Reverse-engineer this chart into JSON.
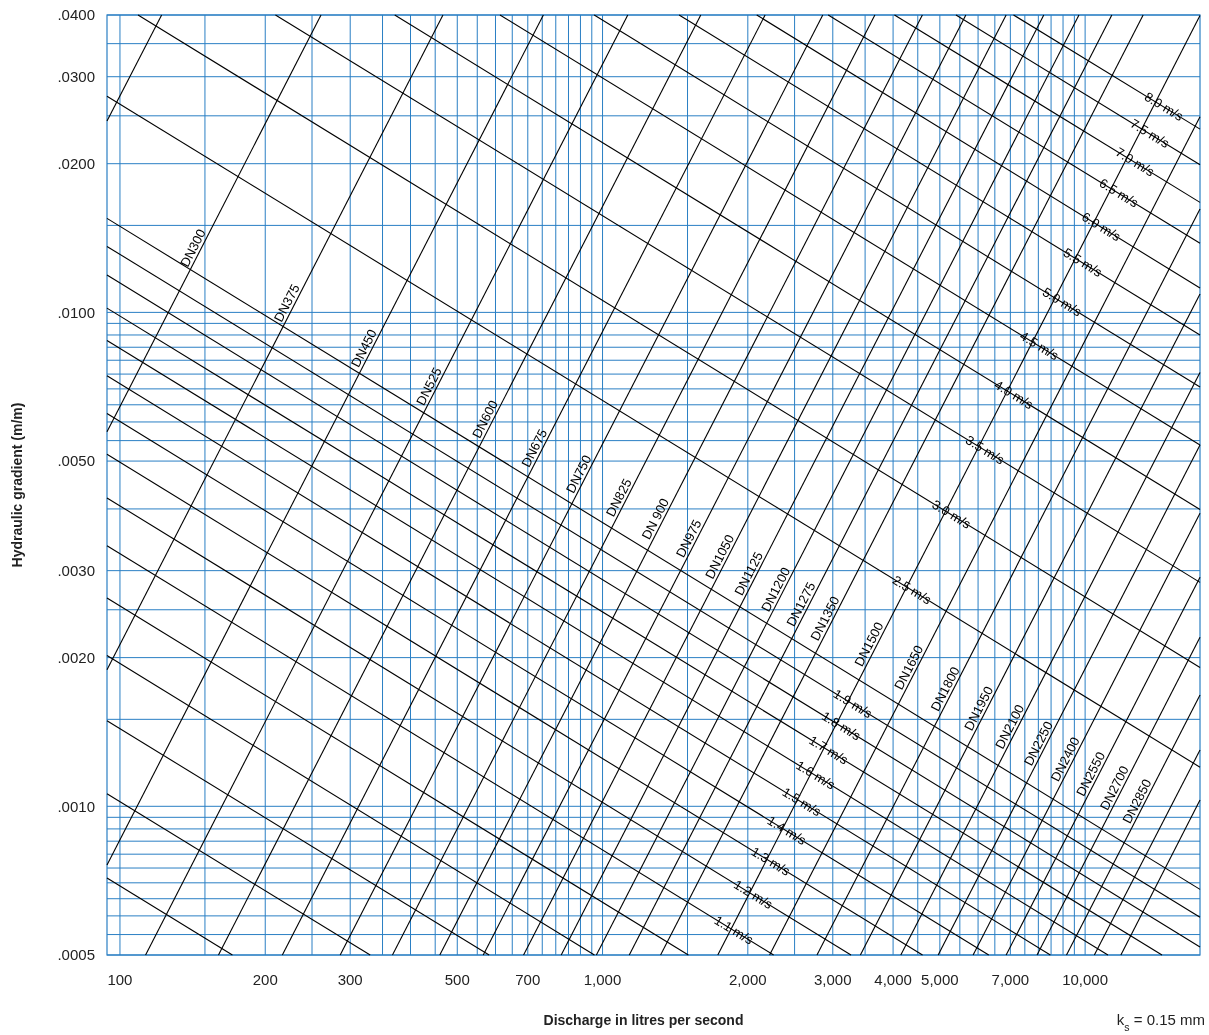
{
  "chart_data": {
    "type": "line",
    "log": "xy",
    "grid": true,
    "xlabel": "Discharge in litres per second",
    "ylabel": "Hydraulic gradient (m/m)",
    "annotations": [
      "k$_{s}$ = 0.15 mm"
    ],
    "xlim": [
      94,
      17300
    ],
    "ylim": [
      0.0005,
      0.04
    ],
    "xticks": [
      100,
      {
        "value": 150,
        "label": null
      },
      200,
      {
        "value": 250,
        "label": null
      },
      300,
      {
        "value": 350,
        "label": null
      },
      {
        "value": 400,
        "label": null
      },
      {
        "value": 450,
        "label": null
      },
      500,
      {
        "value": 550,
        "label": null
      },
      {
        "value": 600,
        "label": null
      },
      {
        "value": 650,
        "label": null
      },
      700,
      {
        "value": 750,
        "label": null
      },
      {
        "value": 800,
        "label": null
      },
      {
        "value": 850,
        "label": null
      },
      {
        "value": 900,
        "label": null
      },
      {
        "value": 950,
        "label": null
      },
      {
        "value": 1000,
        "label": "1,000"
      },
      {
        "value": 1500,
        "label": null
      },
      {
        "value": 2000,
        "label": "2,000"
      },
      {
        "value": 2500,
        "label": null
      },
      {
        "value": 3000,
        "label": "3,000"
      },
      {
        "value": 3500,
        "label": null
      },
      {
        "value": 4000,
        "label": "4,000"
      },
      {
        "value": 4500,
        "label": null
      },
      {
        "value": 5000,
        "label": "5,000"
      },
      {
        "value": 5500,
        "label": null
      },
      {
        "value": 6000,
        "label": null
      },
      {
        "value": 6500,
        "label": null
      },
      {
        "value": 7000,
        "label": "7,000"
      },
      {
        "value": 7500,
        "label": null
      },
      {
        "value": 8000,
        "label": null
      },
      {
        "value": 8500,
        "label": null
      },
      {
        "value": 9000,
        "label": null
      },
      {
        "value": 9500,
        "label": null
      },
      {
        "value": 10000,
        "label": "10,000"
      }
    ],
    "yticks": [
      {
        "value": 0.04,
        "label": ".0400"
      },
      {
        "value": 0.035,
        "label": null
      },
      {
        "value": 0.03,
        "label": ".0300"
      },
      {
        "value": 0.025,
        "label": null
      },
      {
        "value": 0.02,
        "label": ".0200"
      },
      {
        "value": 0.015,
        "label": null
      },
      {
        "value": 0.01,
        "label": ".0100"
      },
      {
        "value": 0.0095,
        "label": null
      },
      {
        "value": 0.009,
        "label": null
      },
      {
        "value": 0.0085,
        "label": null
      },
      {
        "value": 0.008,
        "label": null
      },
      {
        "value": 0.0075,
        "label": null
      },
      {
        "value": 0.007,
        "label": null
      },
      {
        "value": 0.0065,
        "label": null
      },
      {
        "value": 0.006,
        "label": null
      },
      {
        "value": 0.0055,
        "label": null
      },
      {
        "value": 0.005,
        "label": ".0050"
      },
      {
        "value": 0.004,
        "label": null
      },
      {
        "value": 0.003,
        "label": ".0030"
      },
      {
        "value": 0.0025,
        "label": null
      },
      {
        "value": 0.002,
        "label": ".0020"
      },
      {
        "value": 0.0015,
        "label": null
      },
      {
        "value": 0.001,
        "label": ".0010"
      },
      {
        "value": 0.00095,
        "label": null
      },
      {
        "value": 0.0009,
        "label": null
      },
      {
        "value": 0.00085,
        "label": null
      },
      {
        "value": 0.0008,
        "label": null
      },
      {
        "value": 0.00075,
        "label": null
      },
      {
        "value": 0.0007,
        "label": null
      },
      {
        "value": 0.00065,
        "label": null
      },
      {
        "value": 0.0006,
        "label": null
      },
      {
        "value": 0.00055,
        "label": null
      },
      {
        "value": 0.0005,
        "label": ".0005"
      }
    ],
    "series": [
      {
        "color": "#000000",
        "x": [
          94,
          122
        ],
        "values": [
          0.0244,
          0.04
        ]
      },
      {
        "name": "DN300",
        "color": "#000000",
        "x": [
          94,
          261
        ],
        "values": [
          0.00573,
          0.04
        ]
      },
      {
        "name": "DN375",
        "color": "#000000",
        "x": [
          94,
          467
        ],
        "values": [
          0.00189,
          0.04
        ]
      },
      {
        "name": "DN450",
        "color": "#000000",
        "x": [
          94,
          754
        ],
        "values": [
          0.000761,
          0.04
        ]
      },
      {
        "name": "DN525",
        "color": "#000000",
        "x": [
          113,
          1128
        ],
        "values": [
          0.0005,
          0.04
        ]
      },
      {
        "name": "DN600",
        "color": "#000000",
        "x": [
          160,
          1598
        ],
        "values": [
          0.0005,
          0.04
        ]
      },
      {
        "name": "DN675",
        "color": "#000000",
        "x": [
          217,
          2172
        ],
        "values": [
          0.0005,
          0.04
        ]
      },
      {
        "name": "DN750",
        "color": "#000000",
        "x": [
          286,
          2860
        ],
        "values": [
          0.0005,
          0.04
        ]
      },
      {
        "name": "DN825",
        "color": "#000000",
        "x": [
          367,
          3667
        ],
        "values": [
          0.0005,
          0.04
        ]
      },
      {
        "name": "DN 900",
        "color": "#000000",
        "x": [
          460,
          4600
        ],
        "values": [
          0.0005,
          0.04
        ]
      },
      {
        "name": "DN975",
        "color": "#000000",
        "x": [
          566,
          5660
        ],
        "values": [
          0.0005,
          0.04
        ]
      },
      {
        "name": "DN1050",
        "color": "#000000",
        "x": [
          686,
          6860
        ],
        "values": [
          0.0005,
          0.04
        ]
      },
      {
        "name": "DN1125",
        "color": "#000000",
        "x": [
          821,
          8210
        ],
        "values": [
          0.0005,
          0.04
        ]
      },
      {
        "name": "DN1200",
        "color": "#000000",
        "x": [
          971,
          9710
        ],
        "values": [
          0.0005,
          0.04
        ]
      },
      {
        "name": "DN1275",
        "color": "#000000",
        "x": [
          1136,
          11360
        ],
        "values": [
          0.0005,
          0.04
        ]
      },
      {
        "name": "DN1350",
        "color": "#000000",
        "x": [
          1319,
          13190
        ],
        "values": [
          0.0005,
          0.04
        ]
      },
      {
        "name": "DN1500",
        "color": "#000000",
        "x": [
          1733,
          17300
        ],
        "values": [
          0.0005,
          0.0399
        ]
      },
      {
        "name": "DN1650",
        "color": "#000000",
        "x": [
          2219,
          17300
        ],
        "values": [
          0.0005,
          0.0249
        ]
      },
      {
        "name": "DN1800",
        "color": "#000000",
        "x": [
          2782,
          17300
        ],
        "values": [
          0.0005,
          0.0162
        ]
      },
      {
        "name": "DN1950",
        "color": "#000000",
        "x": [
          3422,
          17300
        ],
        "values": [
          0.0005,
          0.0109
        ]
      },
      {
        "name": "DN2100",
        "color": "#000000",
        "x": [
          4150,
          17300
        ],
        "values": [
          0.0005,
          0.00756
        ]
      },
      {
        "name": "DN2250",
        "color": "#000000",
        "x": [
          4960,
          17300
        ],
        "values": [
          0.0005,
          0.00539
        ]
      },
      {
        "name": "DN2400",
        "color": "#000000",
        "x": [
          5860,
          17300
        ],
        "values": [
          0.0005,
          0.00392
        ]
      },
      {
        "name": "DN2550",
        "color": "#000000",
        "x": [
          6860,
          17300
        ],
        "values": [
          0.0005,
          0.00291
        ]
      },
      {
        "name": "DN2700",
        "color": "#000000",
        "x": [
          7950,
          17300
        ],
        "values": [
          0.0005,
          0.0022
        ]
      },
      {
        "name": "DN2850",
        "color": "#000000",
        "x": [
          9150,
          17300
        ],
        "values": [
          0.0005,
          0.00168
        ]
      },
      {
        "color": "#000000",
        "x": [
          10450,
          17300
        ],
        "values": [
          0.0005,
          0.0013
        ]
      },
      {
        "color": "#000000",
        "x": [
          11860,
          17300
        ],
        "values": [
          0.0005,
          0.00103
        ]
      },
      {
        "color": "#000000",
        "x": [
          94,
          171
        ],
        "values": [
          0.000716,
          0.0005
        ]
      },
      {
        "color": "#000000",
        "x": [
          94,
          330
        ],
        "values": [
          0.00106,
          0.0005
        ]
      },
      {
        "color": "#000000",
        "x": [
          94,
          582
        ],
        "values": [
          0.00149,
          0.0005
        ]
      },
      {
        "color": "#000000",
        "x": [
          94,
          962
        ],
        "values": [
          0.00202,
          0.0005
        ]
      },
      {
        "color": "#000000",
        "x": [
          94,
          1506
        ],
        "values": [
          0.00264,
          0.0005
        ]
      },
      {
        "name": "1.1 m/s",
        "color": "#000000",
        "x": [
          94,
          2262
        ],
        "values": [
          0.00337,
          0.0005
        ]
      },
      {
        "name": "1.2 m/s",
        "color": "#000000",
        "x": [
          94,
          3272
        ],
        "values": [
          0.00421,
          0.0005
        ]
      },
      {
        "name": "1.3 m/s",
        "color": "#000000",
        "x": [
          94,
          4603
        ],
        "values": [
          0.00516,
          0.0005
        ]
      },
      {
        "name": "1.4 m/s",
        "color": "#000000",
        "x": [
          94,
          6313
        ],
        "values": [
          0.00624,
          0.0005
        ]
      },
      {
        "name": "1.5 m/s",
        "color": "#000000",
        "x": [
          94,
          8470
        ],
        "values": [
          0.00744,
          0.0005
        ]
      },
      {
        "name": "1.6 m/s",
        "color": "#000000",
        "x": [
          94,
          11150
        ],
        "values": [
          0.00877,
          0.0005
        ]
      },
      {
        "name": "1.7 m/s",
        "color": "#000000",
        "x": [
          94,
          14430
        ],
        "values": [
          0.0102,
          0.0005
        ]
      },
      {
        "name": "1.8 m/s",
        "color": "#000000",
        "x": [
          94,
          17300
        ],
        "values": [
          0.0119,
          0.000519
        ]
      },
      {
        "name": "1.9 m/s",
        "color": "#000000",
        "x": [
          94,
          17300
        ],
        "values": [
          0.0136,
          0.000596
        ]
      },
      {
        "color": "#000000",
        "x": [
          94,
          17300
        ],
        "values": [
          0.0155,
          0.000679
        ]
      },
      {
        "name": "2.5 m/s",
        "color": "#000000",
        "x": [
          94,
          17300
        ],
        "values": [
          0.0274,
          0.0012
        ]
      },
      {
        "name": "3.0 m/s",
        "color": "#000000",
        "x": [
          109,
          17300
        ],
        "values": [
          0.04,
          0.00191
        ]
      },
      {
        "name": "3.5 m/s",
        "color": "#000000",
        "x": [
          210,
          17300
        ],
        "values": [
          0.04,
          0.00284
        ]
      },
      {
        "name": "4.0 m/s",
        "color": "#000000",
        "x": [
          371,
          17300
        ],
        "values": [
          0.04,
          0.00399
        ]
      },
      {
        "name": "4.5 m/s",
        "color": "#000000",
        "x": [
          613,
          17300
        ],
        "values": [
          0.04,
          0.00539
        ]
      },
      {
        "name": "5.0 m/s",
        "color": "#000000",
        "x": [
          961,
          17300
        ],
        "values": [
          0.04,
          0.00706
        ]
      },
      {
        "name": "5.5 m/s",
        "color": "#000000",
        "x": [
          1441,
          17300
        ],
        "values": [
          0.04,
          0.009
        ]
      },
      {
        "name": "6.0 m/s",
        "color": "#000000",
        "x": [
          2087,
          17300
        ],
        "values": [
          0.04,
          0.0112
        ]
      },
      {
        "name": "6.5 m/s",
        "color": "#000000",
        "x": [
          2935,
          17300
        ],
        "values": [
          0.04,
          0.0138
        ]
      },
      {
        "name": "7.0 m/s",
        "color": "#000000",
        "x": [
          4027,
          17300
        ],
        "values": [
          0.04,
          0.0167
        ]
      },
      {
        "name": "7.5 m/s",
        "color": "#000000",
        "x": [
          5399,
          17300
        ],
        "values": [
          0.04,
          0.0199
        ]
      },
      {
        "name": "8.0 m/s",
        "color": "#000000",
        "x": [
          7106,
          17300
        ],
        "values": [
          0.04,
          0.0235
        ]
      }
    ]
  }
}
